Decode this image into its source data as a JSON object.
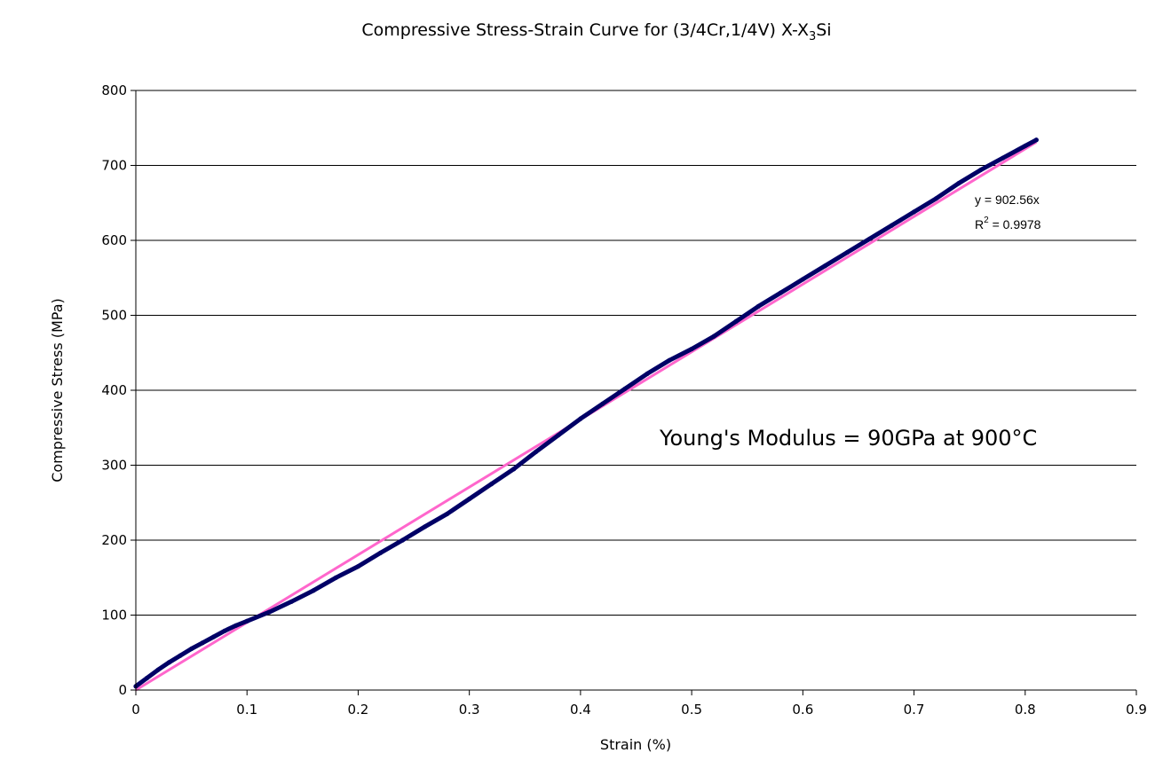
{
  "chart_data": {
    "type": "scatter",
    "title_main": "Compressive Stress-Strain Curve for (3/4Cr,1/4V) X-X",
    "title_sub": "3",
    "title_tail": "Si",
    "xlabel": "Strain (%)",
    "ylabel": "Compressive Stress (MPa)",
    "xlim": [
      0,
      0.9
    ],
    "ylim": [
      0,
      800
    ],
    "x_ticks": [
      "0",
      "0.1",
      "0.2",
      "0.3",
      "0.4",
      "0.5",
      "0.6",
      "0.7",
      "0.8",
      "0.9"
    ],
    "y_ticks": [
      "0",
      "100",
      "200",
      "300",
      "400",
      "500",
      "600",
      "700",
      "800"
    ],
    "grid": "horizontal",
    "legend": "none",
    "series": [
      {
        "color": "#000066",
        "points": [
          [
            0,
            5
          ],
          [
            0.01,
            16
          ],
          [
            0.02,
            27
          ],
          [
            0.03,
            37
          ],
          [
            0.04,
            46
          ],
          [
            0.05,
            55
          ],
          [
            0.06,
            63
          ],
          [
            0.07,
            71
          ],
          [
            0.08,
            79
          ],
          [
            0.09,
            86
          ],
          [
            0.1,
            92
          ],
          [
            0.12,
            104
          ],
          [
            0.14,
            118
          ],
          [
            0.16,
            133
          ],
          [
            0.18,
            150
          ],
          [
            0.2,
            165
          ],
          [
            0.22,
            183
          ],
          [
            0.24,
            200
          ],
          [
            0.26,
            218
          ],
          [
            0.28,
            235
          ],
          [
            0.3,
            255
          ],
          [
            0.32,
            275
          ],
          [
            0.34,
            295
          ],
          [
            0.36,
            318
          ],
          [
            0.38,
            340
          ],
          [
            0.4,
            362
          ],
          [
            0.42,
            382
          ],
          [
            0.44,
            402
          ],
          [
            0.46,
            422
          ],
          [
            0.48,
            440
          ],
          [
            0.5,
            455
          ],
          [
            0.52,
            472
          ],
          [
            0.54,
            492
          ],
          [
            0.56,
            512
          ],
          [
            0.58,
            530
          ],
          [
            0.6,
            548
          ],
          [
            0.62,
            566
          ],
          [
            0.64,
            584
          ],
          [
            0.66,
            602
          ],
          [
            0.68,
            620
          ],
          [
            0.7,
            638
          ],
          [
            0.72,
            656
          ],
          [
            0.74,
            676
          ],
          [
            0.76,
            694
          ],
          [
            0.78,
            710
          ],
          [
            0.8,
            726
          ],
          [
            0.81,
            734
          ]
        ]
      }
    ],
    "trendline": {
      "slope": 902.56,
      "color": "#ff66cc",
      "x_range": [
        0,
        0.81
      ],
      "equation": "y = 902.56x",
      "r2_prefix": "R",
      "r2_sup": "2",
      "r2_value": " = 0.9978"
    },
    "annotation": "Young's Modulus = 90GPa at 900°C"
  }
}
